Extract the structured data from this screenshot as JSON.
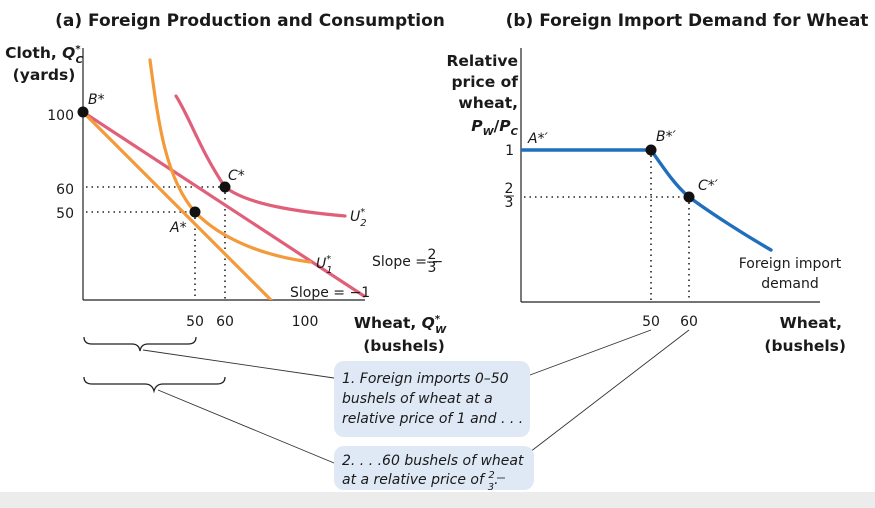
{
  "chart_data": [
    {
      "panel": "a",
      "type": "line",
      "title": "(a) Foreign Production and Consumption",
      "ylabel_lines": [
        "Cloth, Q*C",
        "(yards)"
      ],
      "xlabel_lines": [
        "Wheat, Q*W",
        "(bushels)"
      ],
      "x_ticks": [
        "50",
        "60",
        "100"
      ],
      "y_ticks": [
        "100",
        "60",
        "50"
      ],
      "xlim": [
        0,
        125
      ],
      "ylim": [
        0,
        125
      ],
      "series": [
        {
          "name": "Slope = −1",
          "color": "#f39a3a",
          "x": [
            0,
            100
          ],
          "y": [
            100,
            0
          ]
        },
        {
          "name": "Slope = −2/3",
          "color": "#e0607a",
          "x": [
            0,
            150
          ],
          "y": [
            100,
            0
          ]
        },
        {
          "name": "U*1",
          "color": "#f39a3a",
          "x": [
            18,
            26,
            36,
            50,
            70,
            95
          ],
          "y": [
            120,
            84,
            64,
            50,
            39,
            33
          ]
        },
        {
          "name": "U*2",
          "color": "#e0607a",
          "x": [
            25,
            33,
            44,
            60,
            85,
            115
          ],
          "y": [
            108,
            88,
            72,
            60,
            51,
            46
          ]
        }
      ],
      "points": [
        {
          "label": "B*",
          "x": 0,
          "y": 100
        },
        {
          "label": "C*",
          "x": 60,
          "y": 60
        },
        {
          "label": "A*",
          "x": 50,
          "y": 50
        }
      ],
      "annotations": [
        "Slope = −1",
        "Slope = −2/3",
        "U*1",
        "U*2"
      ]
    },
    {
      "panel": "b",
      "type": "line",
      "title": "(b) Foreign Import Demand for Wheat",
      "ylabel_lines": [
        "Relative",
        "price of",
        "wheat,",
        "PW/PC"
      ],
      "xlabel_lines": [
        "Wheat,",
        "(bushels)"
      ],
      "x_ticks": [
        "50",
        "60"
      ],
      "y_ticks": [
        "1",
        "2/3"
      ],
      "xlim": [
        0,
        90
      ],
      "ylim": [
        0,
        1.5
      ],
      "series": [
        {
          "name": "Foreign import demand",
          "color": "#1f6fbd",
          "x": [
            0,
            50,
            56,
            60,
            70,
            80
          ],
          "y": [
            1,
            1,
            0.8,
            0.667,
            0.48,
            0.33
          ]
        }
      ],
      "points": [
        {
          "label": "A*′",
          "x": 0,
          "y": 1
        },
        {
          "label": "B*′",
          "x": 50,
          "y": 1
        },
        {
          "label": "C*′",
          "x": 60,
          "y": 0.667
        }
      ],
      "annotations": [
        "Foreign import",
        "demand"
      ]
    }
  ],
  "notes": {
    "note1_lines": [
      "1. Foreign imports 0–50",
      "bushels of wheat at a",
      "relative price of 1 and . . ."
    ],
    "note2_lines": [
      "2.  . . .60 bushels of wheat",
      "at a relative price of 2/3."
    ]
  },
  "colors": {
    "orange": "#f39a3a",
    "pink": "#e0607a",
    "blue": "#1f6fbd",
    "callout_bg": "#dfe8f5"
  }
}
